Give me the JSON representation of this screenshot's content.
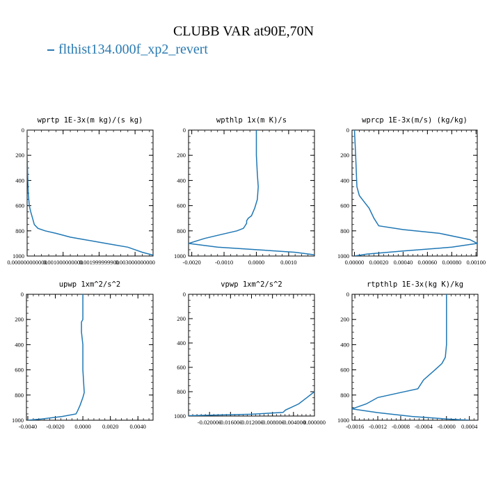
{
  "figure": {
    "title": "CLUBB VAR at90E,70N",
    "legend_label": "flthist134.000f_xp2_revert",
    "legend_color": "#2a7ab0",
    "line_color": "#1f77b4"
  },
  "chart_data": [
    {
      "type": "line",
      "title": "wprtp  1E-3x(m kg)/(s kg)",
      "xlim": [
        0.0,
        0.0035
      ],
      "ylim": [
        1000,
        0
      ],
      "xticks": [
        0.0,
        0.001,
        0.002,
        0.003
      ],
      "xtick_labels": [
        "0.000000000000",
        "0.001000000000",
        "0.001999999900",
        "0.003000000000"
      ],
      "yticks": [
        0,
        200,
        400,
        600,
        800,
        1000
      ],
      "ytick_labels": [
        "0",
        "200",
        "400",
        "600",
        "800",
        "1000"
      ],
      "series": [
        {
          "x": [
            0.0,
            0.0,
            1e-05,
            3e-05,
            6e-05,
            0.0001,
            0.00015,
            0.0002,
            0.0003,
            0.0005,
            0.0008,
            0.0012,
            0.0016,
            0.002,
            0.0024,
            0.0028,
            0.003,
            0.0032,
            0.0035
          ],
          "y": [
            0,
            200,
            300,
            500,
            600,
            650,
            700,
            750,
            780,
            800,
            820,
            850,
            870,
            890,
            910,
            930,
            950,
            970,
            992
          ]
        }
      ]
    },
    {
      "type": "line",
      "title": "wpthlp  1x(m K)/s",
      "xlim": [
        -0.0021,
        0.0018
      ],
      "ylim": [
        1000,
        0
      ],
      "xticks": [
        -0.002,
        -0.001,
        0.0,
        0.001
      ],
      "xtick_labels": [
        "-0.0020",
        "-0.0010",
        "0.0000",
        "0.0010"
      ],
      "yticks": [
        0,
        200,
        400,
        600,
        800,
        1000
      ],
      "ytick_labels": [
        "0",
        "200",
        "400",
        "600",
        "800",
        "1000"
      ],
      "series": [
        {
          "x": [
            0.0,
            0.0,
            3e-05,
            6e-05,
            3e-05,
            -5e-05,
            -0.00015,
            -0.00025,
            -0.0003,
            -0.0003,
            -0.00035,
            -0.0004,
            -0.0006,
            -0.0011,
            -0.0016,
            -0.0021,
            -0.0012,
            0.0,
            0.0012,
            0.0018
          ],
          "y": [
            0,
            200,
            350,
            450,
            550,
            620,
            680,
            700,
            720,
            740,
            760,
            780,
            800,
            830,
            860,
            900,
            930,
            950,
            970,
            990
          ]
        }
      ]
    },
    {
      "type": "line",
      "title": "wprcp  1E-3x(m/s) (kg/kg)",
      "xlim": [
        -2e-05,
        0.00101
      ],
      "ylim": [
        1000,
        0
      ],
      "xticks": [
        0.0,
        0.0002,
        0.0004,
        0.0006,
        0.0008,
        0.001
      ],
      "xtick_labels": [
        "0.00000",
        "0.00020",
        "0.00040",
        "0.00060",
        "0.00080",
        "0.00100"
      ],
      "yticks": [
        0,
        200,
        400,
        600,
        800,
        1000
      ],
      "ytick_labels": [
        "0",
        "200",
        "400",
        "600",
        "800",
        "1000"
      ],
      "series": [
        {
          "x": [
            0.0,
            1e-05,
            2e-05,
            4e-05,
            8e-05,
            0.00012,
            0.00016,
            0.0002,
            0.0004,
            0.0007,
            0.00095,
            0.00101,
            0.0008,
            0.0004,
            0.0001,
            0.0
          ],
          "y": [
            0,
            200,
            450,
            520,
            570,
            620,
            700,
            760,
            790,
            820,
            870,
            900,
            930,
            960,
            985,
            1000
          ]
        }
      ]
    },
    {
      "type": "line",
      "title": "upwp  1xm^2/s^2",
      "xlim": [
        -0.0041,
        0.0051
      ],
      "ylim": [
        1000,
        0
      ],
      "xticks": [
        -0.004,
        -0.002,
        0.0,
        0.002,
        0.004
      ],
      "xtick_labels": [
        "-0.0040",
        "-0.0020",
        "0.0000",
        "0.0020",
        "0.0040"
      ],
      "yticks": [
        0,
        200,
        400,
        600,
        800,
        1000
      ],
      "ytick_labels": [
        "0",
        "200",
        "400",
        "600",
        "800",
        "1000"
      ],
      "series": [
        {
          "x": [
            0.0,
            0.0,
            -0.0001,
            -0.0001,
            0.0,
            0.0,
            0.0001,
            0.0,
            -0.0002,
            -0.0004,
            -0.0005,
            -0.0015,
            -0.003,
            -0.004
          ],
          "y": [
            0,
            200,
            220,
            300,
            400,
            600,
            780,
            820,
            880,
            930,
            950,
            970,
            990,
            1000
          ]
        }
      ]
    },
    {
      "type": "line",
      "title": "vpwp  1xm^2/s^2",
      "xlim": [
        -0.024,
        0.0
      ],
      "ylim": [
        1000,
        0
      ],
      "xticks": [
        -0.02,
        -0.016,
        -0.012,
        -0.008,
        -0.004,
        0.0
      ],
      "xtick_labels": [
        "-0.020000",
        "-0.016000",
        "-0.012000",
        "-0.008000",
        "-0.004000",
        "0.000000"
      ],
      "yticks": [
        0,
        200,
        400,
        600,
        800,
        1000
      ],
      "ytick_labels": [
        "0",
        "200",
        "400",
        "600",
        "800",
        "1000"
      ],
      "series": [
        {
          "x": [
            0.0,
            -0.0015,
            -0.003,
            -0.0045,
            -0.0055,
            -0.006,
            -0.012,
            -0.024
          ],
          "y": [
            800,
            850,
            900,
            930,
            950,
            970,
            985,
            997
          ]
        }
      ]
    },
    {
      "type": "line",
      "title": "rtpthlp  1E-3x(kg K)/kg",
      "xlim": [
        -0.00165,
        0.00055
      ],
      "ylim": [
        1000,
        0
      ],
      "xticks": [
        -0.0016,
        -0.0012,
        -0.0008,
        -0.0004,
        0.0,
        0.0004
      ],
      "xtick_labels": [
        "-0.0016",
        "-0.0012",
        "-0.0008",
        "-0.0004",
        "-0.0000",
        "0.0004"
      ],
      "yticks": [
        0,
        200,
        400,
        600,
        800,
        1000
      ],
      "ytick_labels": [
        "0",
        "200",
        "400",
        "600",
        "800",
        "1000"
      ],
      "series": [
        {
          "x": [
            0.0,
            0.0,
            -2e-05,
            -8e-05,
            -0.0002,
            -0.0004,
            -0.0005,
            -0.0008,
            -0.0012,
            -0.0014,
            -0.00165,
            -0.0012,
            -0.0006,
            0.0,
            0.0004
          ],
          "y": [
            0,
            400,
            500,
            550,
            600,
            680,
            750,
            780,
            820,
            870,
            910,
            940,
            970,
            990,
            1000
          ]
        }
      ]
    }
  ]
}
